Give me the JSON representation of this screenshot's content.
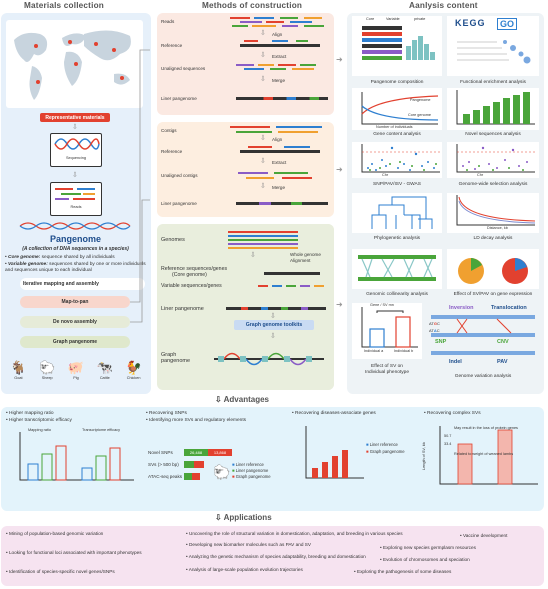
{
  "headers": {
    "materials": "Materials collection",
    "methods": "Methods of construction",
    "analysis": "Aanlysis content",
    "advantages": "Advantages",
    "applications": "Applications"
  },
  "materials": {
    "rep_label": "Representative materials",
    "sequencing": "Sequencing",
    "reads": "Reads",
    "pangenome_title": "Pangenome",
    "pangenome_def": "(A collection of DNA sequences in a species)",
    "core_term": "Core genome:",
    "core_def": "sequence shared by all individuals",
    "variable_term": "Variable genome:",
    "variable_def": "sequences shared by one or more individuals and sequences unique to each individual",
    "animals": [
      "Goat",
      "Sheep",
      "Pig",
      "Cattle",
      "Chicken"
    ]
  },
  "methods": {
    "iterative": "Iterative mapping and assembly",
    "map_to_pan": "Map-to-pan",
    "de_novo": "De novo assembly",
    "graph_pg": "Graph pangenome",
    "box1": {
      "reads": "Reads",
      "align": "Align",
      "reference": "Reference",
      "extract": "Extract",
      "unaligned": "Unaligned sequences",
      "merge": "Merge",
      "liner": "Liner pangenome"
    },
    "box2": {
      "contigs": "Contigs",
      "align": "Align",
      "reference": "Reference",
      "extract": "Extract",
      "unaligned": "Unaligned contigs",
      "merge": "Merge",
      "liner": "Liner pangenome"
    },
    "box3": {
      "genomes": "Genomes",
      "whole_genome": "Whole genome",
      "alignment": "Alignment",
      "ref_seq": "Reference sequences/genes",
      "core": "(Core genome)",
      "variable": "Variable sequences/genes",
      "liner": "Liner pangenome",
      "toolkits": "Graph genome toolkits",
      "graph": "Graph",
      "pangenome": "pangenome"
    }
  },
  "analysis": {
    "pangenome_composition": "Pangenome composition",
    "legend_core": "Core",
    "legend_variable": "Variable",
    "legend_private": "private",
    "kegg": "KEGG",
    "go": "GO",
    "functional_enrichment": "Functional enrichment analysis",
    "gene_content": "Gene content analysis",
    "novel_sequences": "Novel sequences analysis",
    "gwas": "SNP/PAV/ISV - GWAS",
    "selection": "Genome-wide selection analysis",
    "phylo": "Phylogenetic analysis",
    "ld": "LD decay analysis",
    "collinearity": "Genomic collinearity analysis",
    "effect_expr": "Effect of SV/PAV on gene expression",
    "effect_pheno": "Effect of SV on",
    "effect_pheno2": "Individual phenotype",
    "variation": "Genome variation analysis",
    "inversion": "Inversion",
    "translocation": "Translocation",
    "snp": "SNP",
    "cnv": "CNV",
    "indel": "Indel",
    "pav": "PAV",
    "gene_sv": "Gene / SV mn",
    "indiv_a": "Individual a",
    "indiv_b": "Individual b",
    "chr": "Chr",
    "pangenome_lbl": "Pangenome",
    "core_genome_lbl": "Core genome",
    "num_individuals": "Number of individuals",
    "distance": "Distance, kb"
  },
  "advantages": {
    "col1": [
      "Higher mapping ratio",
      "Higher transcriptomic efficacy"
    ],
    "col1_sub": {
      "mapping": "Mapping ratio",
      "transcript": "Transcriptome efficacy"
    },
    "col2": [
      "Recovering SNPs",
      "Identifying more SVs and regulatory elements"
    ],
    "col2_rows": [
      "Novel SNPs",
      "SVs (> 500 bp)",
      "ATAC-seq peaks"
    ],
    "col2_vals": [
      "26,488",
      "13,868"
    ],
    "col2_legend": [
      "Liner reference",
      "Liner pangenome",
      "Graph pangenome"
    ],
    "col3": [
      "Recovering diseases-associate genes"
    ],
    "col3_legend": [
      "Liner reference",
      "Graph pangenome"
    ],
    "col4": [
      "Recovering complex SVs"
    ],
    "col4_note1": "May result in the loss of protein genes",
    "col4_note2": "Related to weight of weaned lambs",
    "col4_ylabel": "Length of SV, kb",
    "col4_vals": [
      "33.4",
      "50.7"
    ]
  },
  "applications": [
    "Mining of population-based genomic variation",
    "Looking for functional loci associated with important phenotypes",
    "Identification of species-specific novel genes/SNPs",
    "Uncovering the role of structural variation in domestication, adaptation, and breeding in various species",
    "Developing new biomarker molecules such as PAV and SV",
    "Analyzing the genetic mechanism of species adaptability, breeding and domestication",
    "Analysis of large-scale population evolution trajectories",
    "Vaccine development",
    "Exploring new species germplasm resources",
    "Evolution of chromosomes and speciation",
    "Exploring the pathogenesis of some diseases"
  ],
  "colors": {
    "materials_bg": "#e6f0fa",
    "box1": "#fbe9e2",
    "box2": "#fdeee0",
    "box3": "#e9eedd",
    "analysis_bg": "#eef3f6",
    "adv_bg": "#e3f3fb",
    "app_bg": "#f6e3f0",
    "accent_red": "#e2412f",
    "green": "#4aa53a",
    "blue": "#2e7fd0"
  }
}
